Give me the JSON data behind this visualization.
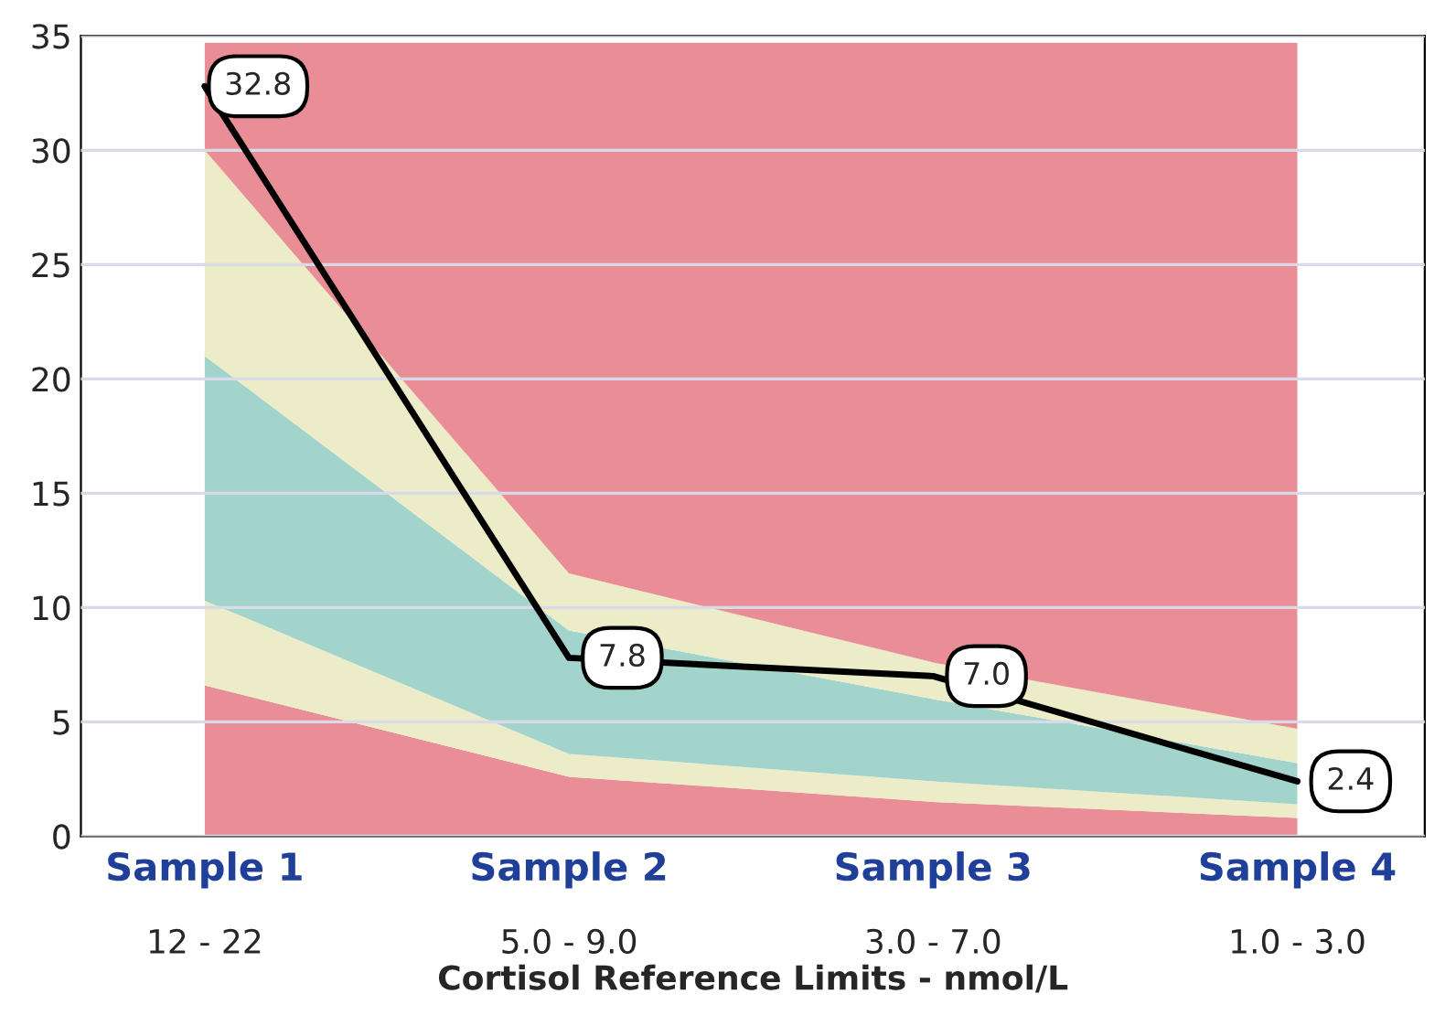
{
  "chart_data": {
    "type": "area",
    "stacked": true,
    "categories": [
      "Sample 1\n12 - 22",
      "Sample 2\n5.0 - 9.0",
      "Sample 3\n3.0 - 7.0",
      "Sample 4\n1.0 - 3.0"
    ],
    "xlabel": "Cortisol Reference Limits - nmol/L",
    "series": [
      {
        "color": "#e98e96",
        "values": [
          6.6,
          2.6,
          1.5,
          0.8
        ]
      },
      {
        "color": "#ececc8",
        "values": [
          3.7,
          1.0,
          0.9,
          0.6
        ]
      },
      {
        "color": "#a3d4cc",
        "values": [
          10.7,
          5.4,
          3.6,
          1.8
        ]
      },
      {
        "color": "#ececc8",
        "values": [
          9.0,
          2.5,
          1.6,
          1.5
        ]
      },
      {
        "color": "#e98e96",
        "values": [
          4.7,
          23.2,
          27.1,
          30.0
        ]
      },
      {
        "type": "line",
        "color": "#000000",
        "values": [
          32.8,
          7.8,
          7.0,
          2.4
        ],
        "value_labels": [
          "32.8",
          "7.8",
          "7.0",
          "2.4"
        ]
      }
    ],
    "ylim": [
      0,
      35
    ],
    "yticks": [
      0,
      5,
      10,
      15,
      20,
      25,
      30,
      35
    ],
    "grid": "y"
  }
}
